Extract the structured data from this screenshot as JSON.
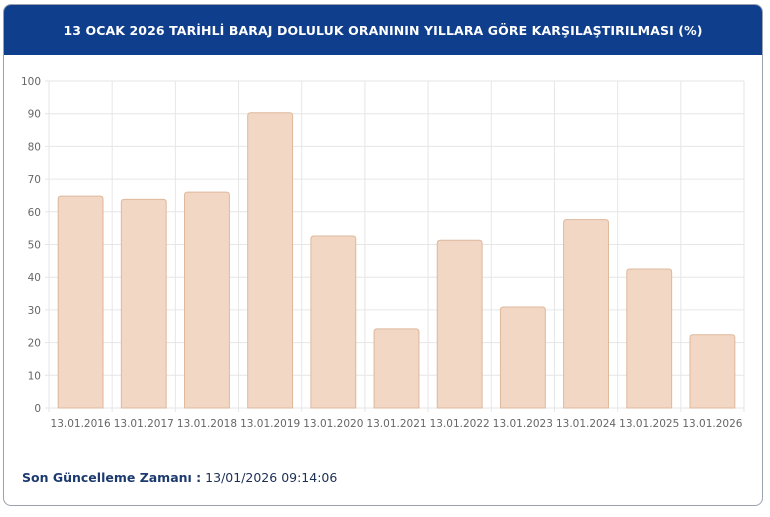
{
  "header": {
    "title": "13 OCAK 2026 TARİHLİ BARAJ DOLULUK ORANININ YILLARA GÖRE KARŞILAŞTIRILMASI (%)"
  },
  "footer": {
    "label": "Son Güncelleme Zamanı :",
    "value": "13/01/2026 09:14:06"
  },
  "colors": {
    "header": "#0f3e8d",
    "bar_fill": "#f2d7c5",
    "bar_stroke": "#ddb89c"
  },
  "chart_data": {
    "type": "bar",
    "title": "13 OCAK 2026 TARİHLİ BARAJ DOLULUK ORANININ YILLARA GÖRE KARŞILAŞTIRILMASI (%)",
    "categories": [
      "13.01.2016",
      "13.01.2017",
      "13.01.2018",
      "13.01.2019",
      "13.01.2020",
      "13.01.2021",
      "13.01.2022",
      "13.01.2023",
      "13.01.2024",
      "13.01.2025",
      "13.01.2026"
    ],
    "values": [
      64.8,
      63.8,
      66.0,
      90.3,
      52.6,
      24.2,
      51.3,
      30.9,
      57.6,
      42.5,
      22.4
    ],
    "ylim": [
      0,
      100
    ],
    "yticks": [
      0,
      10,
      20,
      30,
      40,
      50,
      60,
      70,
      80,
      90,
      100
    ],
    "grid": true,
    "legend": "none"
  }
}
